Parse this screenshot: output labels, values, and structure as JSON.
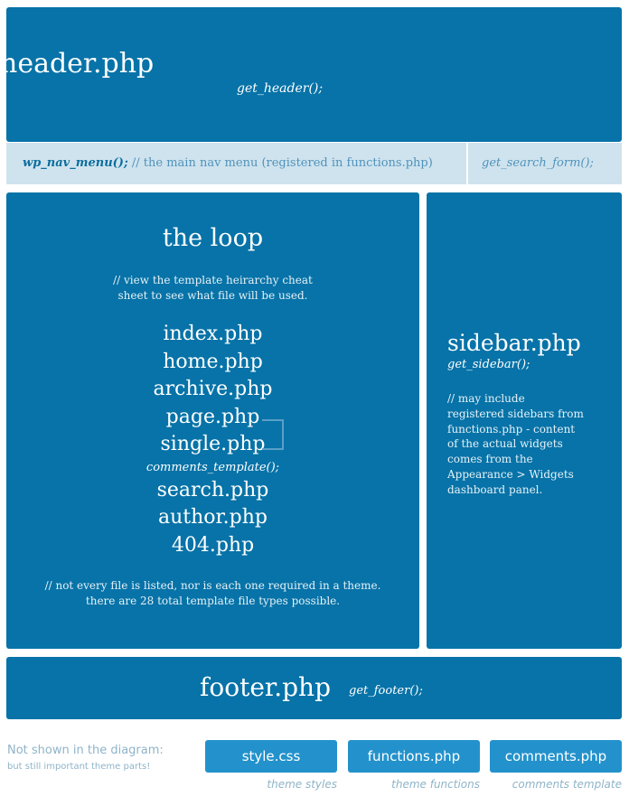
{
  "header": {
    "title": "header.php",
    "function": "get_header();"
  },
  "nav": {
    "function": "wp_nav_menu();",
    "comment": "// the main nav menu (registered in functions.php)",
    "search_function": "get_search_form();"
  },
  "loop": {
    "title": "the loop",
    "note_line1": "// view the template heirarchy cheat",
    "note_line2": "sheet to see what file will be used.",
    "files": [
      "index.php",
      "home.php",
      "archive.php",
      "page.php",
      "single.php"
    ],
    "comments_function": "comments_template();",
    "files_after": [
      "search.php",
      "author.php",
      "404.php"
    ],
    "footnote_line1": "// not every file is listed, nor is each one required in a theme.",
    "footnote_line2": "there are 28 total template file types possible."
  },
  "sidebar": {
    "title": "sidebar.php",
    "function": "get_sidebar();",
    "note_lines": [
      "// may include",
      "registered sidebars from",
      "functions.php - content",
      "of the actual widgets",
      "comes from the",
      "Appearance > Widgets",
      "dashboard panel."
    ]
  },
  "footer": {
    "title": "footer.php",
    "function": "get_footer();"
  },
  "not_shown": {
    "title": "Not shown in the diagram:",
    "subtitle": "but still important theme parts!",
    "parts": [
      {
        "label": "style.css",
        "caption": "theme styles"
      },
      {
        "label": "functions.php",
        "caption": "theme functions"
      },
      {
        "label": "comments.php",
        "caption": "comments template"
      }
    ]
  },
  "colors": {
    "box_blue": "#0773a8",
    "nav_bg": "#cfe3ee",
    "pill_blue": "#2392cc",
    "muted_text": "#8fb4c8"
  }
}
